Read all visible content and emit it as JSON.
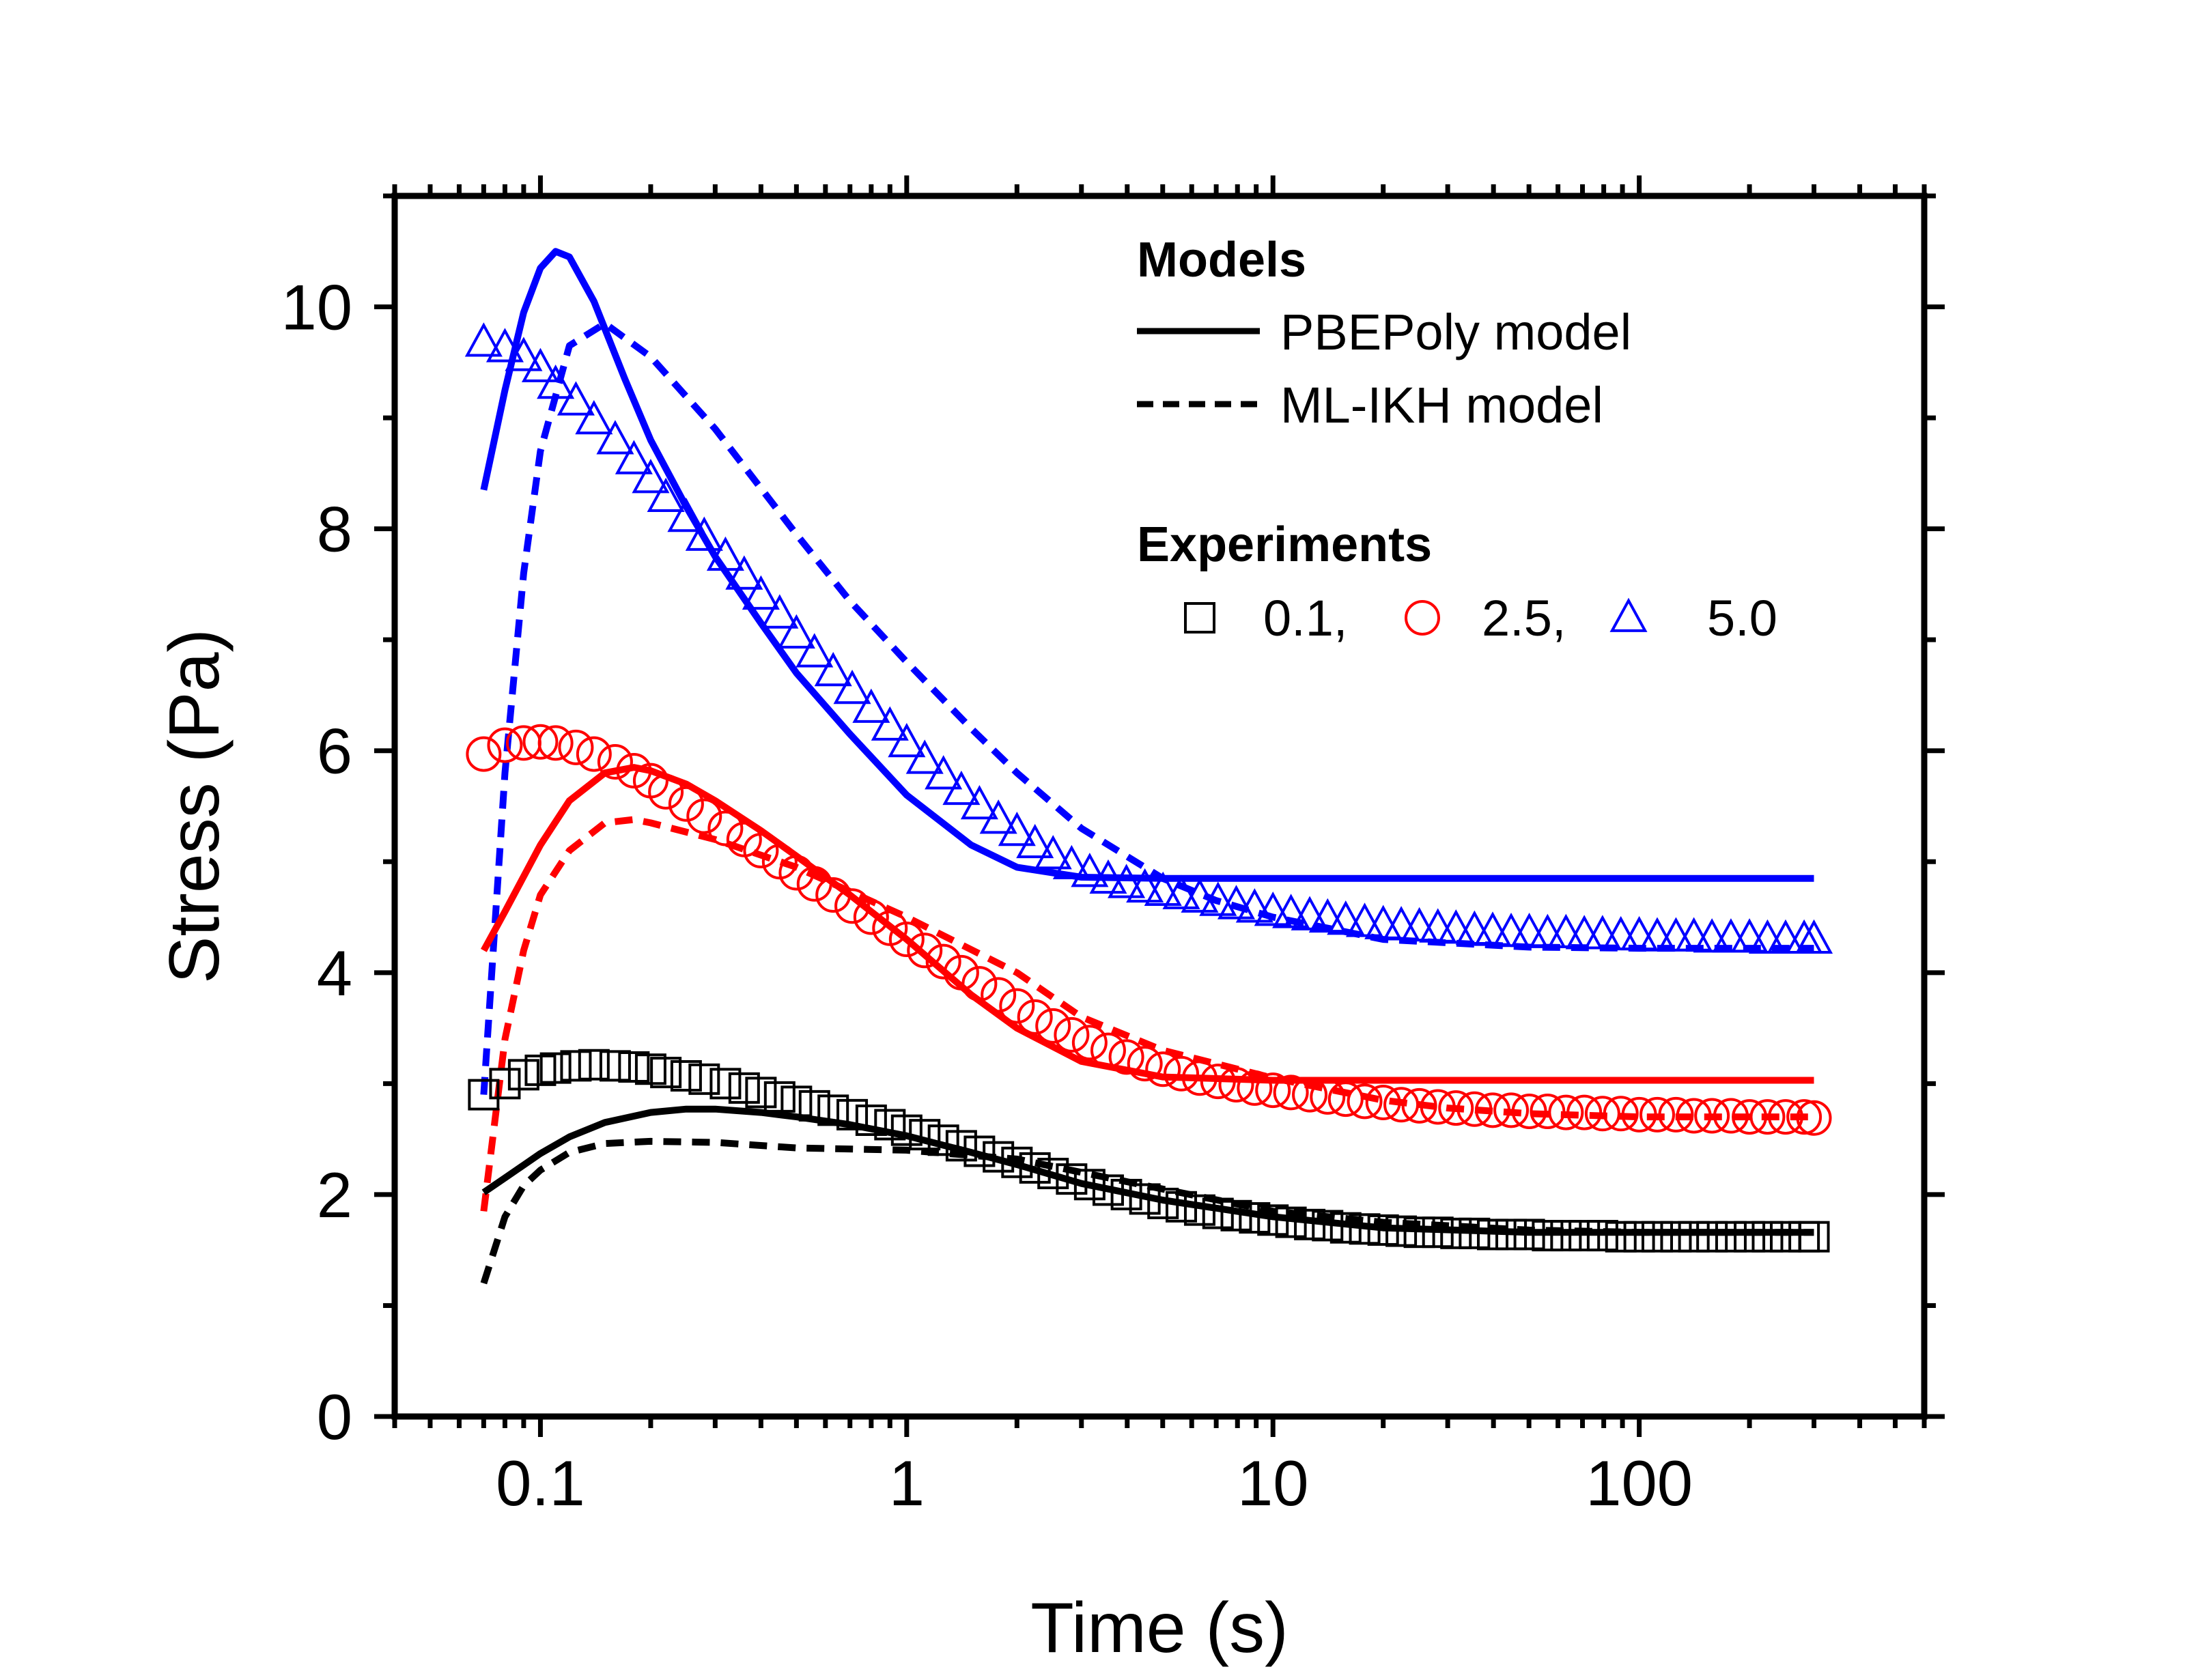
{
  "chart_data": {
    "type": "line",
    "title": "",
    "xlabel": "Time (s)",
    "ylabel": "Stress (Pa)",
    "x_scale": "log",
    "xlim": [
      0.04,
      600
    ],
    "ylim": [
      0,
      11
    ],
    "x_ticks": [
      0.1,
      1,
      10,
      100
    ],
    "x_tick_labels": [
      "0.1",
      "1",
      "10",
      "100"
    ],
    "y_ticks": [
      0,
      2,
      4,
      6,
      8,
      10
    ],
    "y_tick_labels": [
      "0",
      "2",
      "4",
      "6",
      "8",
      "10"
    ],
    "grid": false,
    "legend_placement": "top-right",
    "legend": {
      "models_heading": "Models",
      "experiments_heading": "Experiments",
      "line_entries": [
        {
          "label": "PBEPoly model",
          "style": "solid"
        },
        {
          "label": "ML-IKH model",
          "style": "dashed"
        }
      ],
      "marker_entries": [
        {
          "label": "0.1,",
          "marker": "square",
          "color": "#000000"
        },
        {
          "label": "2.5,",
          "marker": "circle",
          "color": "#ff0000"
        },
        {
          "label": "5.0",
          "marker": "triangle",
          "color": "#0000ff"
        }
      ]
    },
    "colors": {
      "black": "#000000",
      "red": "#ff0000",
      "blue": "#0000ff"
    },
    "series": [
      {
        "model": "PBEPoly",
        "style": "solid",
        "color": "#0000ff",
        "x": [
          0.07,
          0.08,
          0.09,
          0.1,
          0.11,
          0.12,
          0.14,
          0.17,
          0.2,
          0.25,
          0.3,
          0.4,
          0.5,
          0.7,
          1,
          1.5,
          2,
          3,
          5,
          10,
          30,
          100,
          300
        ],
        "y": [
          8.35,
          9.25,
          9.95,
          10.35,
          10.5,
          10.45,
          10.05,
          9.35,
          8.8,
          8.2,
          7.75,
          7.15,
          6.7,
          6.15,
          5.6,
          5.15,
          4.95,
          4.86,
          4.85,
          4.85,
          4.85,
          4.85,
          4.85
        ]
      },
      {
        "model": "ML-IKH",
        "style": "dashed",
        "color": "#0000ff",
        "x": [
          0.07,
          0.08,
          0.09,
          0.1,
          0.12,
          0.15,
          0.2,
          0.3,
          0.5,
          0.7,
          1,
          1.5,
          2,
          3,
          5,
          7,
          10,
          20,
          50,
          100,
          300
        ],
        "y": [
          2.9,
          5.8,
          7.6,
          8.7,
          9.65,
          9.85,
          9.55,
          8.9,
          7.95,
          7.35,
          6.8,
          6.2,
          5.8,
          5.3,
          4.85,
          4.65,
          4.5,
          4.3,
          4.23,
          4.22,
          4.22
        ]
      },
      {
        "model": "PBEPoly",
        "style": "solid",
        "color": "#ff0000",
        "x": [
          0.07,
          0.08,
          0.1,
          0.12,
          0.15,
          0.18,
          0.2,
          0.25,
          0.3,
          0.4,
          0.5,
          0.7,
          1,
          1.5,
          2,
          3,
          5,
          10,
          30,
          100,
          300
        ],
        "y": [
          4.2,
          4.55,
          5.15,
          5.55,
          5.8,
          5.85,
          5.82,
          5.7,
          5.55,
          5.28,
          5.05,
          4.7,
          4.3,
          3.8,
          3.5,
          3.2,
          3.06,
          3.03,
          3.03,
          3.03,
          3.03
        ]
      },
      {
        "model": "ML-IKH",
        "style": "dashed",
        "color": "#ff0000",
        "x": [
          0.07,
          0.08,
          0.09,
          0.1,
          0.12,
          0.15,
          0.18,
          0.2,
          0.3,
          0.5,
          1,
          2,
          3,
          5,
          10,
          20,
          30,
          50,
          100,
          300
        ],
        "y": [
          1.85,
          3.4,
          4.2,
          4.7,
          5.1,
          5.35,
          5.38,
          5.35,
          5.2,
          4.95,
          4.5,
          4.0,
          3.6,
          3.3,
          3.05,
          2.85,
          2.78,
          2.73,
          2.7,
          2.7
        ]
      },
      {
        "model": "PBEPoly",
        "style": "solid",
        "color": "#000000",
        "x": [
          0.07,
          0.08,
          0.1,
          0.12,
          0.15,
          0.2,
          0.25,
          0.3,
          0.4,
          0.5,
          0.7,
          1,
          1.5,
          2,
          3,
          5,
          10,
          20,
          50,
          100,
          300
        ],
        "y": [
          2.02,
          2.15,
          2.37,
          2.52,
          2.65,
          2.74,
          2.77,
          2.77,
          2.74,
          2.7,
          2.63,
          2.53,
          2.38,
          2.27,
          2.1,
          1.95,
          1.8,
          1.7,
          1.66,
          1.66,
          1.66
        ]
      },
      {
        "model": "ML-IKH",
        "style": "dashed",
        "color": "#000000",
        "x": [
          0.07,
          0.08,
          0.09,
          0.1,
          0.12,
          0.15,
          0.2,
          0.3,
          0.5,
          1,
          2,
          3,
          5,
          10,
          20,
          50,
          100,
          300
        ],
        "y": [
          1.2,
          1.8,
          2.08,
          2.22,
          2.38,
          2.46,
          2.48,
          2.47,
          2.42,
          2.4,
          2.32,
          2.2,
          2.05,
          1.85,
          1.75,
          1.68,
          1.66,
          1.66
        ]
      },
      {
        "experiment": "5.0",
        "marker": "triangle",
        "color": "#0000ff",
        "x": [
          0.07,
          0.08,
          0.09,
          0.1,
          0.11,
          0.125,
          0.14,
          0.16,
          0.18,
          0.2,
          0.22,
          0.25,
          0.28,
          0.32,
          0.36,
          0.4,
          0.45,
          0.5,
          0.56,
          0.63,
          0.71,
          0.8,
          0.9,
          1.0,
          1.12,
          1.26,
          1.41,
          1.58,
          1.78,
          2.0,
          2.24,
          2.51,
          2.82,
          3.16,
          3.55,
          3.98,
          4.47,
          5.01,
          5.62,
          6.31,
          7.08,
          7.94,
          8.91,
          10,
          11.2,
          12.6,
          14.1,
          15.8,
          17.8,
          20,
          22.4,
          25.1,
          28.2,
          31.6,
          35.5,
          39.8,
          44.7,
          50.1,
          56.2,
          63.1,
          70.8,
          79.4,
          89.1,
          100,
          112,
          126,
          141,
          158,
          178,
          200,
          224,
          251,
          282,
          300
        ],
        "y": [
          9.68,
          9.63,
          9.55,
          9.45,
          9.3,
          9.15,
          8.98,
          8.8,
          8.62,
          8.45,
          8.28,
          8.1,
          7.93,
          7.75,
          7.58,
          7.4,
          7.23,
          7.05,
          6.88,
          6.71,
          6.55,
          6.38,
          6.22,
          6.07,
          5.92,
          5.78,
          5.64,
          5.51,
          5.38,
          5.27,
          5.16,
          5.06,
          4.97,
          4.9,
          4.84,
          4.8,
          4.76,
          4.73,
          4.7,
          4.67,
          4.64,
          4.61,
          4.58,
          4.55,
          4.53,
          4.51,
          4.49,
          4.47,
          4.45,
          4.43,
          4.42,
          4.41,
          4.4,
          4.39,
          4.38,
          4.37,
          4.36,
          4.36,
          4.35,
          4.35,
          4.34,
          4.34,
          4.33,
          4.33,
          4.32,
          4.32,
          4.32,
          4.31,
          4.31,
          4.31,
          4.3,
          4.3,
          4.3,
          4.3
        ]
      },
      {
        "experiment": "2.5",
        "marker": "circle",
        "color": "#ff0000",
        "x": [
          0.07,
          0.08,
          0.09,
          0.1,
          0.11,
          0.125,
          0.14,
          0.16,
          0.18,
          0.2,
          0.22,
          0.25,
          0.28,
          0.32,
          0.36,
          0.4,
          0.45,
          0.5,
          0.56,
          0.63,
          0.71,
          0.8,
          0.9,
          1.0,
          1.12,
          1.26,
          1.41,
          1.58,
          1.78,
          2.0,
          2.24,
          2.51,
          2.82,
          3.16,
          3.55,
          3.98,
          4.47,
          5.01,
          5.62,
          6.31,
          7.08,
          7.94,
          8.91,
          10,
          11.2,
          12.6,
          14.1,
          15.8,
          17.8,
          20,
          22.4,
          25.1,
          28.2,
          31.6,
          35.5,
          39.8,
          44.7,
          50.1,
          56.2,
          63.1,
          70.8,
          79.4,
          89.1,
          100,
          112,
          126,
          141,
          158,
          178,
          200,
          224,
          251,
          282,
          300
        ],
        "y": [
          5.97,
          6.05,
          6.07,
          6.08,
          6.07,
          6.03,
          5.97,
          5.9,
          5.82,
          5.73,
          5.63,
          5.52,
          5.41,
          5.3,
          5.2,
          5.1,
          5.0,
          4.9,
          4.8,
          4.7,
          4.6,
          4.5,
          4.4,
          4.3,
          4.2,
          4.1,
          4.0,
          3.9,
          3.8,
          3.7,
          3.6,
          3.52,
          3.44,
          3.37,
          3.3,
          3.24,
          3.18,
          3.13,
          3.09,
          3.05,
          3.02,
          2.99,
          2.96,
          2.94,
          2.92,
          2.9,
          2.88,
          2.86,
          2.84,
          2.83,
          2.81,
          2.8,
          2.79,
          2.78,
          2.77,
          2.76,
          2.76,
          2.75,
          2.75,
          2.74,
          2.74,
          2.73,
          2.73,
          2.72,
          2.72,
          2.72,
          2.71,
          2.71,
          2.71,
          2.7,
          2.7,
          2.7,
          2.7,
          2.69
        ]
      },
      {
        "experiment": "0.1",
        "marker": "square",
        "color": "#000000",
        "x": [
          0.07,
          0.08,
          0.09,
          0.1,
          0.11,
          0.125,
          0.14,
          0.16,
          0.18,
          0.2,
          0.22,
          0.25,
          0.28,
          0.32,
          0.36,
          0.4,
          0.45,
          0.5,
          0.56,
          0.63,
          0.71,
          0.8,
          0.9,
          1.0,
          1.12,
          1.26,
          1.41,
          1.58,
          1.78,
          2.0,
          2.24,
          2.51,
          2.82,
          3.16,
          3.55,
          3.98,
          4.47,
          5.01,
          5.62,
          6.31,
          7.08,
          7.94,
          8.91,
          10,
          11.2,
          12.6,
          14.1,
          15.8,
          17.8,
          20,
          22.4,
          25.1,
          28.2,
          31.6,
          35.5,
          39.8,
          44.7,
          50.1,
          56.2,
          63.1,
          70.8,
          79.4,
          89.1,
          100,
          112,
          126,
          141,
          158,
          178,
          200,
          224,
          251,
          282,
          300
        ],
        "y": [
          2.9,
          3.0,
          3.08,
          3.12,
          3.14,
          3.16,
          3.17,
          3.16,
          3.15,
          3.13,
          3.1,
          3.07,
          3.04,
          3.0,
          2.96,
          2.92,
          2.88,
          2.84,
          2.8,
          2.76,
          2.72,
          2.67,
          2.63,
          2.58,
          2.54,
          2.49,
          2.44,
          2.39,
          2.34,
          2.29,
          2.24,
          2.19,
          2.14,
          2.09,
          2.04,
          2.0,
          1.96,
          1.92,
          1.89,
          1.86,
          1.83,
          1.81,
          1.79,
          1.77,
          1.75,
          1.73,
          1.72,
          1.7,
          1.69,
          1.68,
          1.67,
          1.66,
          1.66,
          1.65,
          1.65,
          1.64,
          1.64,
          1.64,
          1.63,
          1.63,
          1.63,
          1.63,
          1.62,
          1.62,
          1.62,
          1.62,
          1.62,
          1.62,
          1.62,
          1.62,
          1.62,
          1.62,
          1.62,
          1.62
        ]
      }
    ]
  }
}
